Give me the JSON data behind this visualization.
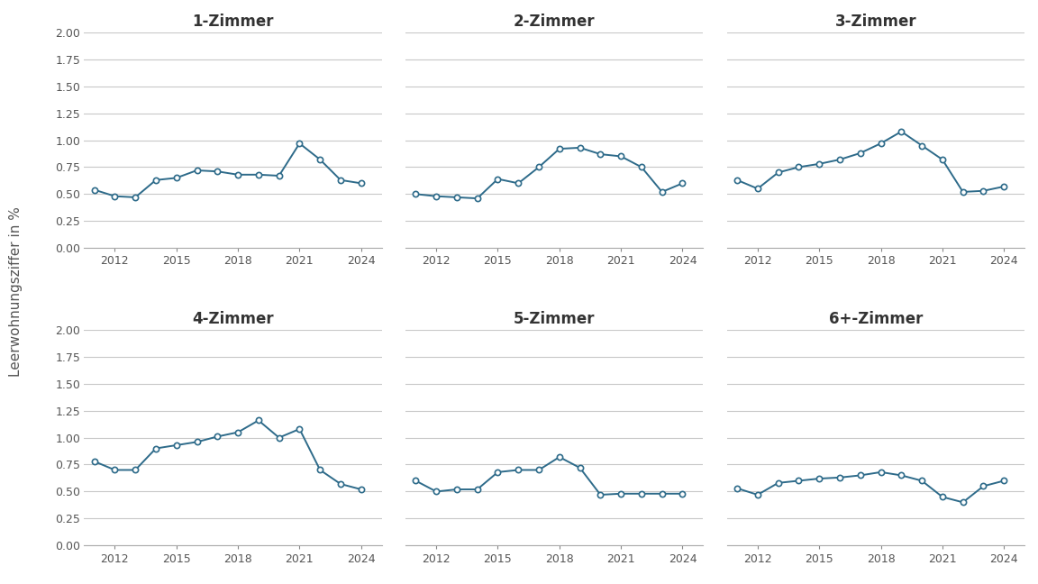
{
  "years": [
    2011,
    2012,
    2013,
    2014,
    2015,
    2016,
    2017,
    2018,
    2019,
    2020,
    2021,
    2022,
    2023,
    2024
  ],
  "series": {
    "1-Zimmer": [
      0.54,
      0.48,
      0.47,
      0.63,
      0.65,
      0.72,
      0.71,
      0.68,
      0.68,
      0.67,
      0.97,
      0.82,
      0.63,
      0.6
    ],
    "2-Zimmer": [
      0.5,
      0.48,
      0.47,
      0.46,
      0.64,
      0.6,
      0.75,
      0.92,
      0.93,
      0.87,
      0.85,
      0.75,
      0.52,
      0.6
    ],
    "3-Zimmer": [
      0.63,
      0.55,
      0.7,
      0.75,
      0.78,
      0.82,
      0.88,
      0.97,
      1.08,
      0.95,
      0.82,
      0.52,
      0.53,
      0.57
    ],
    "4-Zimmer": [
      0.78,
      0.7,
      0.7,
      0.9,
      0.93,
      0.96,
      1.01,
      1.05,
      1.16,
      1.0,
      1.08,
      0.7,
      0.57,
      0.52
    ],
    "5-Zimmer": [
      0.6,
      0.5,
      0.52,
      0.52,
      0.68,
      0.7,
      0.7,
      0.82,
      0.72,
      0.47,
      0.48,
      0.48,
      0.48,
      0.48
    ],
    "6+-Zimmer": [
      0.53,
      0.47,
      0.58,
      0.6,
      0.62,
      0.63,
      0.65,
      0.68,
      0.65,
      0.6,
      0.45,
      0.4,
      0.55,
      0.6
    ]
  },
  "titles": [
    "1-Zimmer",
    "2-Zimmer",
    "3-Zimmer",
    "4-Zimmer",
    "5-Zimmer",
    "6+-Zimmer"
  ],
  "ylabel": "Leerwohnungsziffer in %",
  "ylim": [
    0.0,
    2.0
  ],
  "yticks": [
    0.0,
    0.25,
    0.5,
    0.75,
    1.0,
    1.25,
    1.5,
    1.75,
    2.0
  ],
  "xticks": [
    2012,
    2015,
    2018,
    2021,
    2024
  ],
  "line_color": "#2e6b8a",
  "marker_facecolor": "#ffffff",
  "marker_edgecolor": "#2e6b8a",
  "background_color": "#ffffff",
  "grid_color": "#c8c8c8",
  "tick_label_color": "#555555",
  "title_color": "#333333",
  "ylabel_color": "#555555"
}
